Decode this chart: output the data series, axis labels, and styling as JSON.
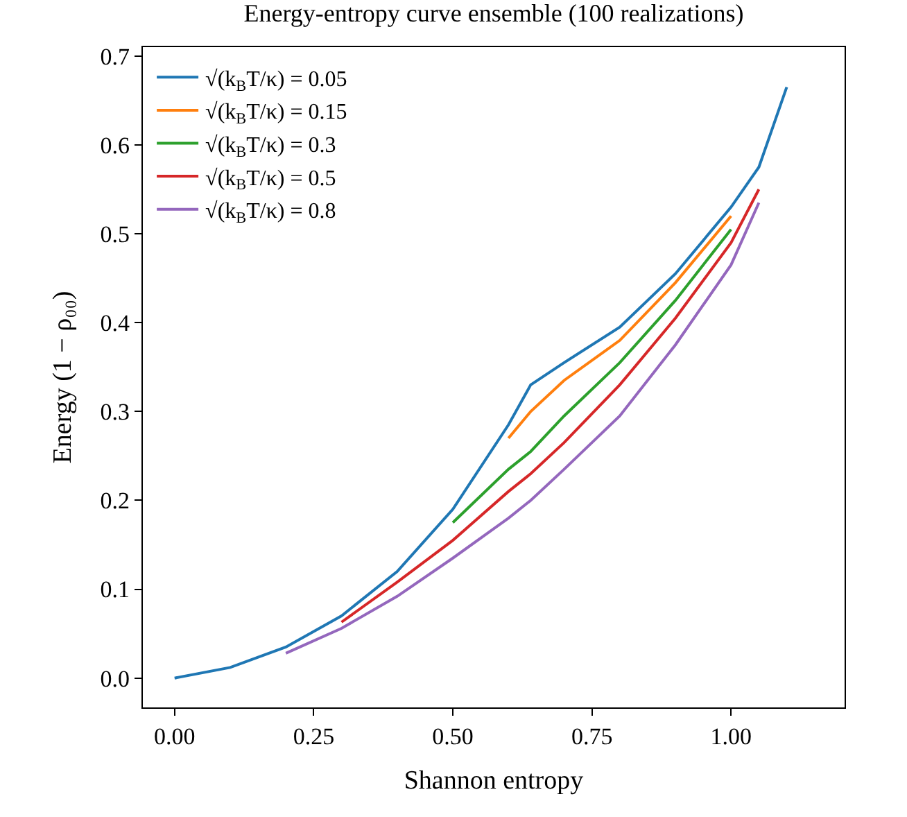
{
  "chart_data": {
    "type": "line",
    "title": "Energy-entropy curve ensemble (100 realizations)",
    "xlabel": "Shannon entropy",
    "ylabel": "Energy (1 − ρ₀₀)",
    "x": [
      0,
      0.1,
      0.2,
      0.3,
      0.4,
      0.5,
      0.6,
      0.64,
      0.7,
      0.8,
      0.9,
      1.0,
      1.05,
      1.1
    ],
    "xlim": [
      -0.057,
      1.204
    ],
    "ylim": [
      -0.033,
      0.71
    ],
    "xticks": [
      {
        "value": 0,
        "label": "0.00"
      },
      0.25,
      {
        "value": 0.5,
        "label": "0.50"
      },
      0.75,
      {
        "value": 1,
        "label": "1.00"
      }
    ],
    "yticks": [
      {
        "value": 0,
        "label": "0.0"
      },
      0.1,
      0.2,
      0.3,
      0.4,
      0.5,
      0.6,
      0.7
    ],
    "legend": "top left",
    "marker": "none",
    "line_style": "solid",
    "series": [
      {
        "name": "√(k$_{B}$T/κ) = 0.8",
        "color": "#9467bd",
        "values": [
          null,
          null,
          0.028,
          0.056,
          0.092,
          0.135,
          0.18,
          0.2,
          0.235,
          0.295,
          0.375,
          0.465,
          0.535,
          null
        ]
      },
      {
        "name": "√(k$_{B}$T/κ) = 0.5",
        "color": "#d62728",
        "values": [
          null,
          null,
          null,
          0.063,
          0.108,
          0.155,
          0.21,
          0.23,
          0.265,
          0.33,
          0.405,
          0.49,
          0.55,
          null
        ]
      },
      {
        "name": "√(k$_{B}$T/κ) = 0.3",
        "color": "#2ca02c",
        "values": [
          null,
          null,
          null,
          null,
          null,
          0.175,
          0.235,
          0.255,
          0.295,
          0.355,
          0.425,
          0.505,
          null,
          null
        ]
      },
      {
        "name": "√(k$_{B}$T/κ) = 0.15",
        "color": "#ff7f0e",
        "values": [
          null,
          null,
          null,
          null,
          null,
          null,
          0.27,
          0.3,
          0.335,
          0.38,
          0.445,
          0.52,
          null,
          null
        ]
      },
      {
        "name": "√(k$_{B}$T/κ) = 0.05",
        "color": "#1f77b4",
        "values": [
          0,
          0.012,
          0.035,
          0.07,
          0.12,
          0.19,
          0.285,
          0.33,
          0.355,
          0.395,
          0.455,
          0.53,
          0.575,
          0.665
        ]
      }
    ]
  }
}
